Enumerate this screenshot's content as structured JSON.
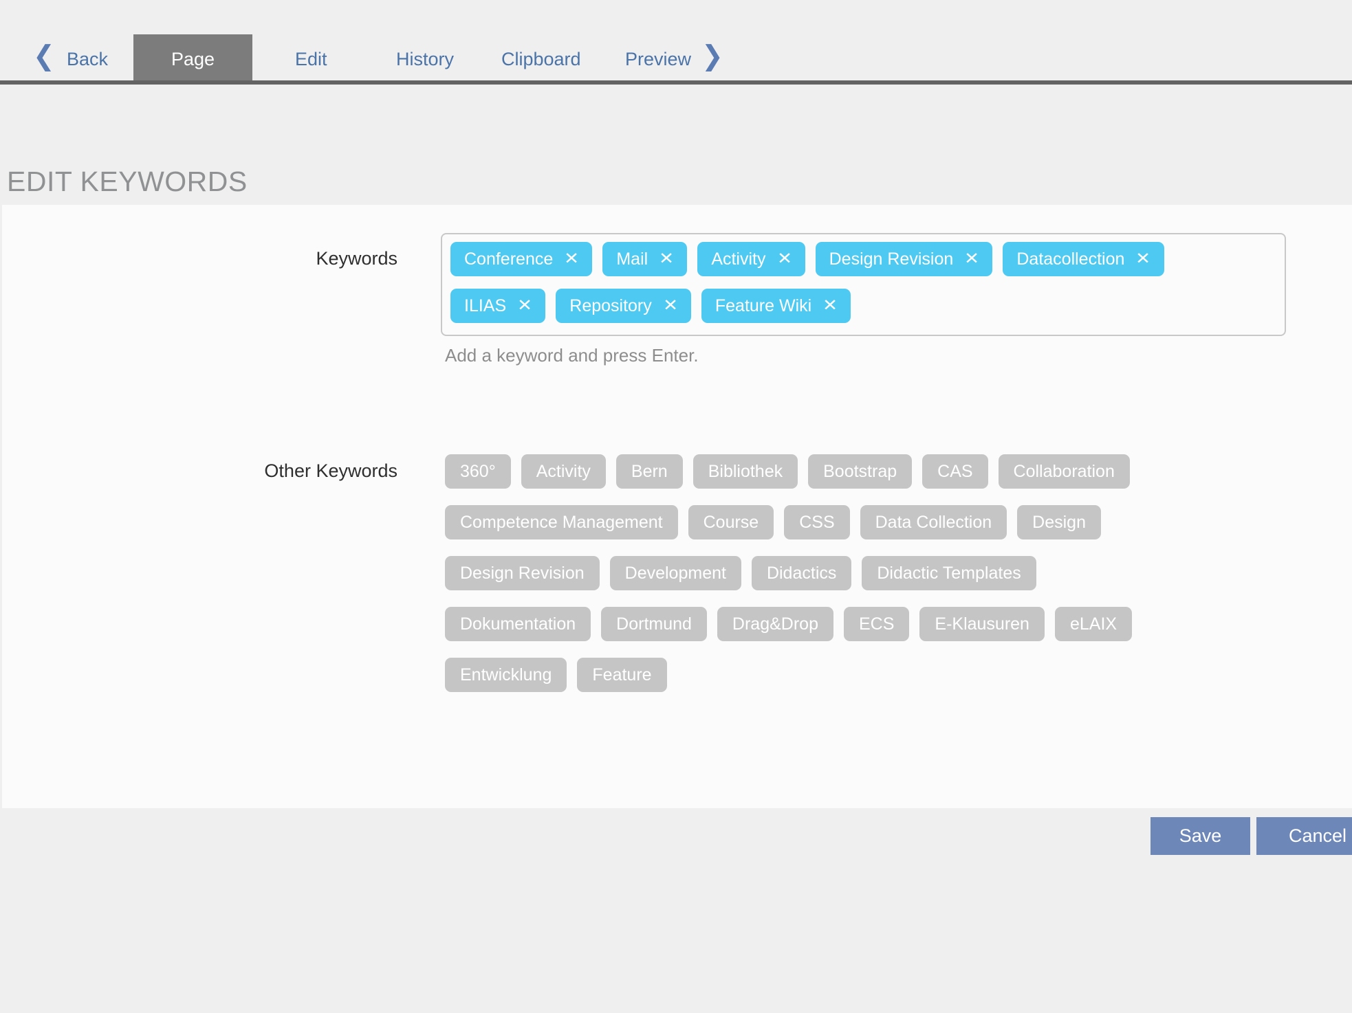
{
  "nav": {
    "back_icon": "❮",
    "forward_icon": "❯",
    "back_label": "Back",
    "tabs": [
      {
        "label": "Page",
        "active": true
      },
      {
        "label": "Edit",
        "active": false
      },
      {
        "label": "History",
        "active": false
      },
      {
        "label": "Clipboard",
        "active": false
      },
      {
        "label": "Preview",
        "active": false
      }
    ]
  },
  "page": {
    "title": "EDIT KEYWORDS"
  },
  "form": {
    "keywords": {
      "label": "Keywords",
      "help": "Add a keyword and press Enter.",
      "remove_icon": "✕",
      "rows": [
        [
          "Conference",
          "Mail",
          "Activity",
          "Design Revision",
          "Datacollection"
        ],
        [
          "ILIAS",
          "Repository",
          "Feature Wiki"
        ]
      ]
    },
    "other_keywords": {
      "label": "Other Keywords",
      "rows": [
        [
          "360°",
          "Activity",
          "Bern",
          "Bibliothek",
          "Bootstrap",
          "CAS",
          "Collaboration"
        ],
        [
          "Competence Management",
          "Course",
          "CSS",
          "Data Collection",
          "Design"
        ],
        [
          "Design Revision",
          "Development",
          "Didactics",
          "Didactic Templates"
        ],
        [
          "Dokumentation",
          "Dortmund",
          "Drag&Drop",
          "ECS",
          "E-Klausuren",
          "eLAIX"
        ],
        [
          "Entwicklung",
          "Feature"
        ]
      ]
    }
  },
  "actions": {
    "save_label": "Save",
    "cancel_label": "Cancel"
  },
  "colors": {
    "tag_blue": "#4dc9f2",
    "tag_gray": "#c5c5c5",
    "nav_link_blue": "#4a73a8",
    "nav_chevron_blue": "#5b7cb3",
    "active_tab_gray": "#7c7c7c",
    "nav_underline_gray": "#636363",
    "button_blue": "#6d87b8",
    "panel_bg": "#fbfbfb",
    "page_bg": "#efefef"
  }
}
